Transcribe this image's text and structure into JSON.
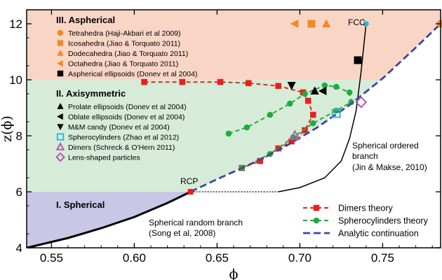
{
  "chart_data": {
    "type": "scatter",
    "xlabel": "ϕ",
    "ylabel": "z(ϕ)",
    "xlim": [
      0.535,
      0.785
    ],
    "ylim": [
      4,
      12.5
    ],
    "x_ticks": [
      "0.55",
      "0.60",
      "0.65",
      "0.70",
      "0.75"
    ],
    "x_tick_values": [
      0.55,
      0.6,
      0.65,
      0.7,
      0.75
    ],
    "y_ticks": [
      "4",
      "6",
      "8",
      "10",
      "12"
    ],
    "y_tick_values": [
      4,
      6,
      8,
      10,
      12
    ],
    "regions": [
      {
        "name": "III. Aspherical",
        "color": "#f9d5c6"
      },
      {
        "name": "II. Axisymmetric",
        "color": "#d6ecd9"
      },
      {
        "name": "I. Spherical",
        "color": "#c9c6e6"
      }
    ],
    "region_bounds": {
      "spherical_top": 6,
      "axisymmetric_top": 10
    },
    "experimental_groups": [
      {
        "title": "III. Aspherical",
        "items": [
          {
            "name": "Tetrahedra (Haji-Akbari et al 2009)",
            "marker": "circle",
            "color": "#f08a24"
          },
          {
            "name": "Icosahedra (Jiao & Torquato 2011)",
            "marker": "square",
            "color": "#f08a24"
          },
          {
            "name": "Dodecahedra (Jiao & Torquato 2011)",
            "marker": "triangle-up",
            "color": "#f08a24"
          },
          {
            "name": "Octahedra (Jiao & Torquato 2011)",
            "marker": "triangle-left",
            "color": "#f08a24"
          },
          {
            "name": "Aspherical ellipsoids (Donev et al 2004)",
            "marker": "square",
            "color": "#000000"
          }
        ]
      },
      {
        "title": "II. Axisymmetric",
        "items": [
          {
            "name": "Prolate ellipsoids (Donev et al 2004)",
            "marker": "triangle-up",
            "color": "#000000"
          },
          {
            "name": "Oblate ellipsoids (Donev et al 2004)",
            "marker": "triangle-left",
            "color": "#000000"
          },
          {
            "name": "M&M candy (Donev et al 2004)",
            "marker": "triangle-down",
            "color": "#000000"
          },
          {
            "name": "Spherocylinders (Zhao et al 2012)",
            "marker": "square-open",
            "color": "#3fb1d9"
          },
          {
            "name": "Dimers (Schreck & O'Hern 2011)",
            "marker": "triangle-up-open",
            "color": "#b05bb0"
          },
          {
            "name": "Lens-shaped particles",
            "marker": "diamond-open",
            "color": "#b05bb0"
          }
        ]
      }
    ],
    "points": [
      {
        "x": 0.785,
        "y": 12.0,
        "marker": "circle",
        "color": "#f08a24"
      },
      {
        "x": 0.707,
        "y": 12.0,
        "marker": "square",
        "color": "#f08a24"
      },
      {
        "x": 0.716,
        "y": 12.0,
        "marker": "triangle-up",
        "color": "#f08a24"
      },
      {
        "x": 0.697,
        "y": 12.0,
        "marker": "triangle-left",
        "color": "#f08a24"
      },
      {
        "x": 0.735,
        "y": 10.7,
        "marker": "square",
        "color": "#000000"
      },
      {
        "x": 0.709,
        "y": 9.6,
        "marker": "triangle-up",
        "color": "#000000"
      },
      {
        "x": 0.714,
        "y": 9.6,
        "marker": "triangle-left",
        "color": "#000000"
      },
      {
        "x": 0.695,
        "y": 9.8,
        "marker": "triangle-down",
        "color": "#000000"
      },
      {
        "x": 0.722,
        "y": 8.8,
        "marker": "square-open",
        "color": "#3fb1d9"
      },
      {
        "x": 0.697,
        "y": 8.0,
        "marker": "triangle-up-open",
        "color": "#b05bb0"
      },
      {
        "x": 0.737,
        "y": 9.2,
        "marker": "diamond-open",
        "color": "#b05bb0"
      }
    ],
    "series": [
      {
        "name": "Dimers theory",
        "color": "#e8201f",
        "style": "dashed",
        "marker": "square",
        "x": [
          0.606,
          0.629,
          0.652,
          0.669,
          0.687,
          0.702,
          0.705,
          0.708,
          0.703,
          0.695,
          0.687,
          0.676,
          0.665
        ],
        "y": [
          9.92,
          9.92,
          9.92,
          9.88,
          9.78,
          9.55,
          9.25,
          8.75,
          8.2,
          7.8,
          7.55,
          7.1,
          6.85
        ]
      },
      {
        "name": "Spherocylinders theory",
        "color": "#1fab3e",
        "style": "dashed",
        "marker": "circle",
        "x": [
          0.657,
          0.668,
          0.682,
          0.694,
          0.703,
          0.715,
          0.722,
          0.73,
          0.731,
          0.722,
          0.708,
          0.696,
          0.682,
          0.665
        ],
        "y": [
          8.08,
          8.3,
          8.75,
          9.15,
          9.5,
          9.8,
          9.75,
          9.55,
          9.2,
          8.9,
          8.45,
          7.95,
          7.35,
          6.85
        ]
      },
      {
        "name": "Analytic continuation",
        "color": "#3b47a3",
        "style": "dashed",
        "marker": "none",
        "x": [
          0.634,
          0.65,
          0.67,
          0.69,
          0.71,
          0.73,
          0.75,
          0.77,
          0.785
        ],
        "y": [
          6.0,
          6.45,
          6.98,
          7.58,
          8.28,
          9.1,
          10.05,
          11.15,
          12.0
        ]
      }
    ],
    "curves": [
      {
        "name": "Spherical random branch",
        "color": "#000000",
        "x": [
          0.535,
          0.56,
          0.58,
          0.6,
          0.62,
          0.634
        ],
        "y": [
          4.0,
          4.35,
          4.7,
          5.1,
          5.6,
          6.0
        ]
      },
      {
        "name": "Spherical ordered branch",
        "color": "#000000",
        "x": [
          0.687,
          0.7,
          0.715,
          0.725,
          0.73,
          0.734,
          0.737,
          0.74
        ],
        "y": [
          6.0,
          6.15,
          6.5,
          7.1,
          7.9,
          8.9,
          10.3,
          12.0
        ]
      }
    ],
    "fcc_point": {
      "x": 0.74,
      "y": 12.0,
      "color": "#3fb1d9"
    },
    "rcp_point": {
      "x": 0.634,
      "y": 6.0,
      "color": "#e8201f"
    },
    "rcp_extension": {
      "x": [
        0.634,
        0.687
      ],
      "y": [
        6.0,
        6.0
      ]
    },
    "annotations": {
      "fcc": "FCC",
      "rcp": "RCP",
      "random_branch": [
        "Spherical random branch",
        "(Song et al, 2008)"
      ],
      "ordered_branch": [
        "Spherical ordered",
        "branch",
        "(Jin & Makse, 2010)"
      ]
    },
    "theory_legend": [
      {
        "name": "Dimers theory",
        "color": "#e8201f",
        "marker": "square"
      },
      {
        "name": "Spherocylinders theory",
        "color": "#1fab3e",
        "marker": "circle"
      },
      {
        "name": "Analytic continuation",
        "color": "#3b47a3",
        "marker": "none"
      }
    ]
  }
}
